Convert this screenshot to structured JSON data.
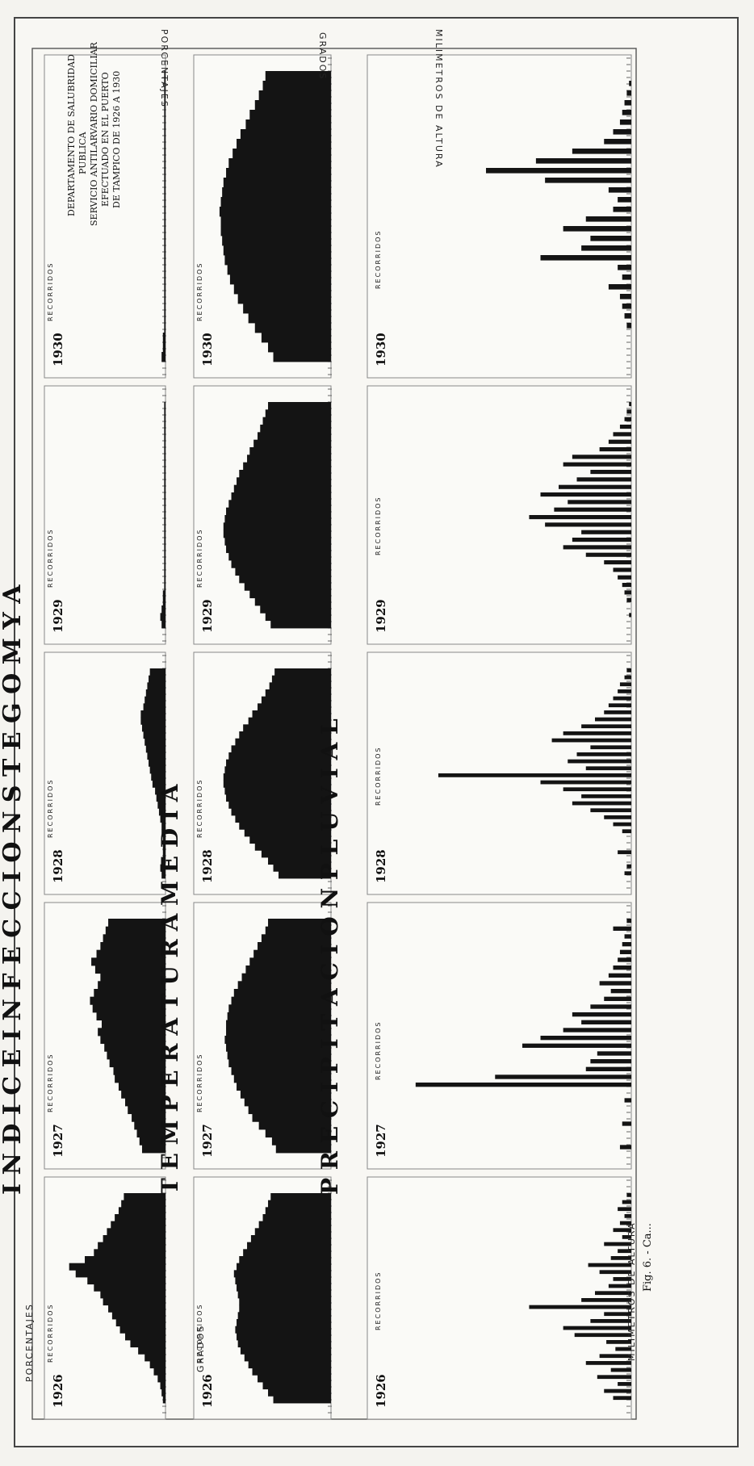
{
  "sheet": {
    "headline_1": "I N D I C E   I N F E C C I O N   S T E G O M Y A",
    "headline_2": "T E M P E R A T U R A   M E D I A",
    "headline_3": "P R E C I P I T A C I O N   P L U V I A L",
    "recorridos": "RECORRIDOS",
    "axis_porcentajes": "PORCENTAJES",
    "axis_grados": "GRADOS",
    "axis_milimetros": "MILIMETROS DE ALTURA",
    "years": [
      "1926",
      "1927",
      "1928",
      "1929",
      "1930"
    ],
    "notice": [
      "DEPARTAMENTO DE SALUBRIDAD",
      "PUBLICA",
      "SERVICIO ANTILARVARIO DOMICILIAR",
      "EFECTUADO EN EL PUERTO",
      "DE TAMPICO DE 1926 A 1930"
    ],
    "caption": "Fig. 6. - Ca..."
  },
  "colors": {
    "ink": "#141414",
    "paper": "#fafaf7",
    "frame": "#888888"
  },
  "chart_data": [
    {
      "type": "bar",
      "title": "INDICE INFECCION STEGOMYA",
      "ylabel": "PORCENTAJES",
      "panels": [
        {
          "year": "1926",
          "values": [
            2,
            3,
            4,
            6,
            9,
            12,
            16,
            21,
            27,
            31,
            35,
            38,
            41,
            44,
            48,
            50,
            55,
            60,
            69,
            74,
            62,
            55,
            52,
            48,
            45,
            42,
            39,
            36,
            34,
            32
          ]
        },
        {
          "year": "1927",
          "values": [
            18,
            20,
            22,
            24,
            26,
            29,
            31,
            34,
            36,
            39,
            40,
            43,
            45,
            47,
            50,
            52,
            49,
            53,
            56,
            58,
            55,
            52,
            50,
            54,
            57,
            53,
            50,
            48,
            46,
            44
          ]
        },
        {
          "year": "1928",
          "values": [
            3,
            4,
            3,
            2,
            2,
            2,
            3,
            3,
            4,
            5,
            6,
            7,
            8,
            10,
            11,
            12,
            13,
            14,
            15,
            16,
            17,
            18,
            19,
            19,
            17,
            16,
            15,
            14,
            13,
            12
          ]
        },
        {
          "year": "1929",
          "values": [
            3,
            4,
            3,
            2,
            2,
            1,
            1,
            1,
            1,
            1,
            1,
            1,
            1,
            1,
            1,
            1,
            1,
            1,
            1,
            1,
            1,
            1,
            1,
            1,
            1,
            1,
            1,
            1,
            1,
            1
          ]
        },
        {
          "year": "1930",
          "values": [
            3,
            2,
            2,
            1,
            1,
            1,
            1,
            1,
            1,
            1,
            1,
            1,
            1,
            1,
            1,
            1,
            1,
            1,
            1,
            1,
            1,
            1,
            1,
            1,
            1,
            1,
            1,
            1,
            1,
            1
          ]
        }
      ]
    },
    {
      "type": "bar",
      "title": "TEMPERATURA MEDIA",
      "ylabel": "GRADOS",
      "panels": [
        {
          "year": "1926",
          "values": [
            44,
            48,
            52,
            56,
            60,
            63,
            66,
            69,
            71,
            72,
            73,
            72,
            71,
            70,
            70,
            71,
            72,
            73,
            74,
            72,
            70,
            67,
            64,
            61,
            58,
            55,
            52,
            50,
            48,
            46
          ]
        },
        {
          "year": "1927",
          "values": [
            42,
            45,
            50,
            55,
            60,
            63,
            66,
            69,
            72,
            74,
            76,
            78,
            79,
            80,
            81,
            80,
            80,
            79,
            78,
            76,
            74,
            71,
            68,
            65,
            62,
            59,
            56,
            53,
            50,
            48
          ]
        },
        {
          "year": "1928",
          "values": [
            40,
            44,
            48,
            53,
            58,
            62,
            66,
            70,
            73,
            76,
            78,
            80,
            81,
            82,
            82,
            81,
            80,
            78,
            76,
            73,
            70,
            67,
            63,
            60,
            56,
            53,
            50,
            47,
            45,
            43
          ]
        },
        {
          "year": "1929",
          "values": [
            46,
            50,
            54,
            58,
            62,
            66,
            70,
            73,
            76,
            78,
            80,
            81,
            82,
            82,
            81,
            80,
            78,
            76,
            74,
            72,
            70,
            67,
            64,
            62,
            59,
            56,
            54,
            52,
            50,
            48
          ]
        },
        {
          "year": "1930",
          "values": [
            44,
            48,
            53,
            58,
            63,
            67,
            71,
            74,
            77,
            79,
            81,
            82,
            83,
            84,
            84,
            85,
            84,
            83,
            82,
            80,
            78,
            75,
            72,
            69,
            65,
            62,
            58,
            55,
            52,
            50
          ]
        }
      ]
    },
    {
      "type": "bar",
      "title": "PRECIPITACION PLUVIAL",
      "ylabel": "MILIMETROS DE ALTURA",
      "panels": [
        {
          "year": "1926",
          "values": [
            8,
            12,
            6,
            15,
            9,
            20,
            14,
            7,
            11,
            25,
            30,
            18,
            12,
            45,
            22,
            16,
            10,
            8,
            14,
            19,
            9,
            6,
            12,
            4,
            8,
            5,
            3,
            6,
            4,
            2
          ]
        },
        {
          "year": "1927",
          "values": [
            5,
            0,
            0,
            4,
            0,
            0,
            3,
            0,
            95,
            60,
            20,
            18,
            15,
            48,
            40,
            30,
            22,
            26,
            18,
            12,
            9,
            14,
            10,
            8,
            6,
            5,
            4,
            3,
            8,
            2
          ]
        },
        {
          "year": "1928",
          "values": [
            3,
            2,
            0,
            6,
            0,
            0,
            4,
            8,
            12,
            18,
            26,
            22,
            30,
            40,
            85,
            20,
            28,
            24,
            18,
            35,
            30,
            22,
            16,
            12,
            10,
            8,
            6,
            5,
            3,
            2
          ]
        },
        {
          "year": "1929",
          "values": [
            0,
            1,
            0,
            2,
            3,
            4,
            6,
            8,
            12,
            20,
            30,
            26,
            22,
            38,
            45,
            34,
            28,
            40,
            32,
            24,
            18,
            30,
            26,
            14,
            10,
            8,
            5,
            3,
            2,
            1
          ]
        },
        {
          "year": "1930",
          "values": [
            0,
            0,
            0,
            2,
            3,
            4,
            5,
            10,
            4,
            6,
            40,
            22,
            18,
            30,
            20,
            8,
            6,
            10,
            38,
            64,
            42,
            26,
            12,
            8,
            5,
            4,
            3,
            2,
            1,
            0
          ]
        }
      ]
    }
  ]
}
